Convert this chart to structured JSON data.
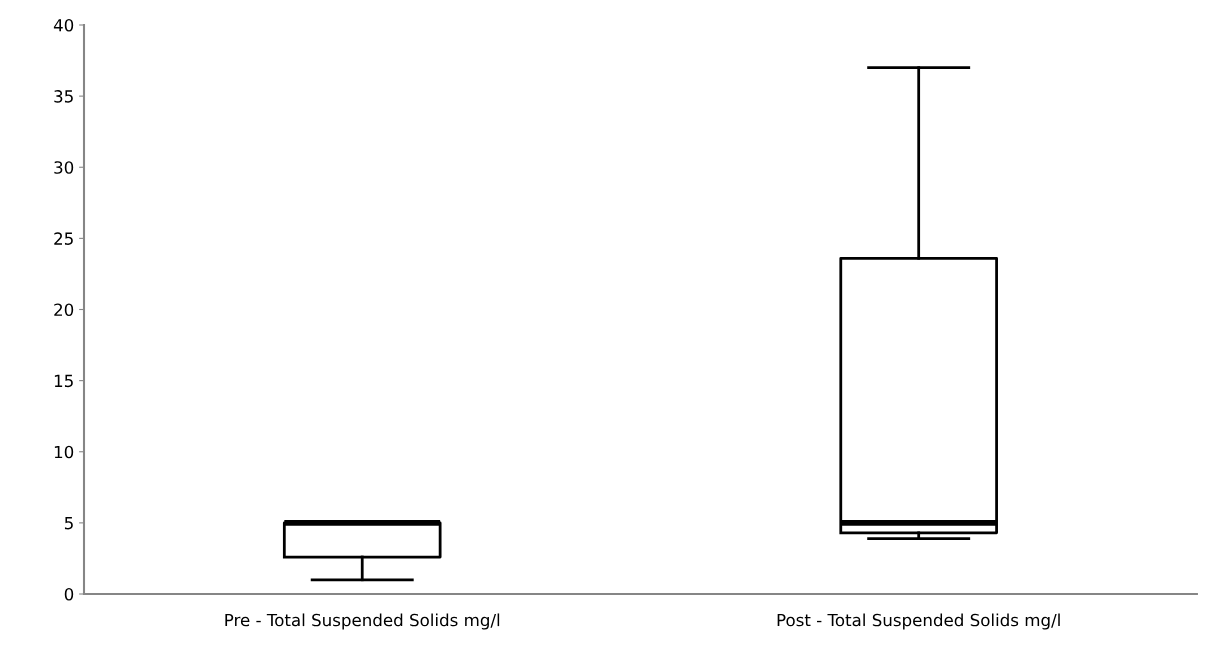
{
  "chart_data": {
    "type": "box",
    "categories": [
      "Pre - Total Suspended Solids mg/l",
      "Post - Total Suspended Solids mg/l"
    ],
    "boxes": [
      {
        "low": 1,
        "q1": 2.6,
        "median": 5,
        "q3": 5,
        "high": 5
      },
      {
        "low": 3.9,
        "q1": 4.3,
        "median": 5,
        "q3": 23.6,
        "high": 37
      }
    ],
    "ylim": [
      0,
      40
    ],
    "yticks": [
      0,
      5,
      10,
      15,
      20,
      25,
      30,
      35,
      40
    ],
    "grid": false,
    "legend": false
  }
}
